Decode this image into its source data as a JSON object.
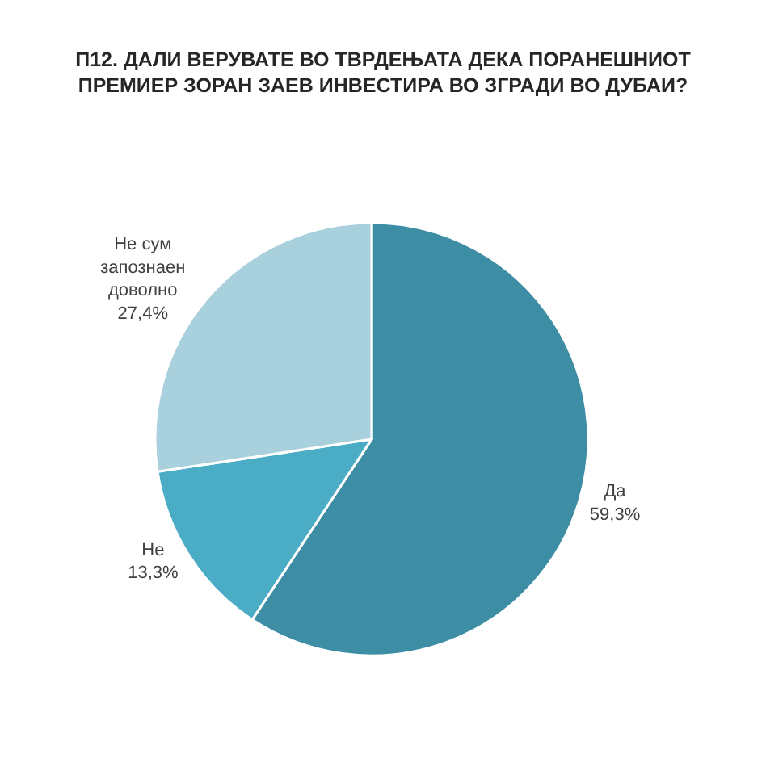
{
  "chart_data": {
    "type": "pie",
    "title": "П12. ДАЛИ ВЕРУВАТЕ ВО ТВРДЕЊАТА ДЕКА ПОРАНЕШНИОТ\nПРЕМИЕР ЗОРАН ЗАЕВ ИНВЕСТИРА ВО ЗГРАДИ ВО ДУБАИ?",
    "categories": [
      "Да",
      "Не",
      "Не сум запознаен доволно"
    ],
    "values": [
      59.3,
      13.3,
      27.4
    ],
    "value_labels": [
      "59,3%",
      "13,3%",
      "27,4%"
    ],
    "colors": [
      "#3d8ea5",
      "#4bacc6",
      "#a9d0dd"
    ],
    "legend": false
  }
}
